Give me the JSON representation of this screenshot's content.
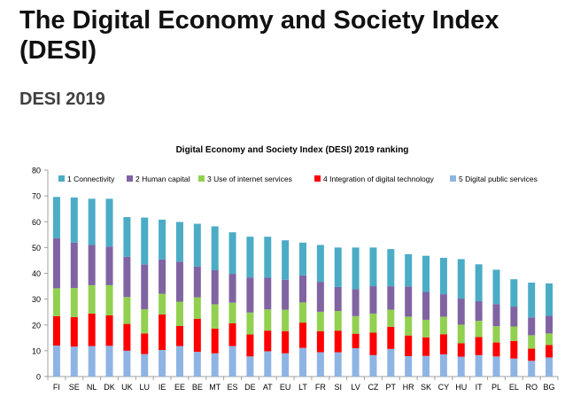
{
  "page": {
    "title": "The Digital Economy and Society Index (DESI)",
    "subtitle": "DESI 2019"
  },
  "chart_data": {
    "type": "bar",
    "stacked": true,
    "title": "Digital Economy and Society Index (DESI) 2019 ranking",
    "xlabel": "",
    "ylabel": "",
    "ylim": [
      0,
      80
    ],
    "yticks": [
      0,
      10,
      20,
      30,
      40,
      50,
      60,
      70,
      80
    ],
    "grid": false,
    "legend_position": "top",
    "categories": [
      "FI",
      "SE",
      "NL",
      "DK",
      "UK",
      "LU",
      "IE",
      "EE",
      "BE",
      "MT",
      "ES",
      "DE",
      "AT",
      "EU",
      "LT",
      "FR",
      "SI",
      "LV",
      "CZ",
      "PT",
      "HR",
      "SK",
      "CY",
      "HU",
      "IT",
      "PL",
      "EL",
      "RO",
      "BG"
    ],
    "series": [
      {
        "name": "5 Digital public services",
        "color": "#8eb4e3",
        "values": [
          12.0,
          11.6,
          11.8,
          11.9,
          10.0,
          8.7,
          10.3,
          11.8,
          9.6,
          9.0,
          11.8,
          7.8,
          9.8,
          9.0,
          11.1,
          9.4,
          9.4,
          11.0,
          8.3,
          10.7,
          7.9,
          8.0,
          8.6,
          7.7,
          8.3,
          7.8,
          7.0,
          6.1,
          7.4
        ]
      },
      {
        "name": "4 Integration of digital technology",
        "color": "#ff0000",
        "values": [
          11.4,
          11.4,
          12.6,
          11.8,
          10.4,
          8.0,
          13.8,
          7.8,
          12.8,
          9.6,
          8.8,
          8.5,
          8.0,
          8.6,
          9.8,
          8.2,
          8.4,
          5.6,
          8.7,
          8.6,
          8.0,
          7.2,
          7.8,
          5.2,
          7.0,
          5.4,
          6.8,
          4.7,
          4.8
        ]
      },
      {
        "name": "3 Use of internet services",
        "color": "#92d050",
        "values": [
          10.8,
          11.3,
          11.0,
          11.7,
          10.4,
          9.4,
          8.0,
          9.4,
          8.3,
          9.4,
          8.0,
          8.5,
          8.2,
          8.3,
          7.8,
          7.5,
          7.6,
          6.8,
          7.4,
          6.6,
          7.3,
          6.8,
          6.8,
          7.2,
          6.3,
          6.3,
          5.6,
          5.2,
          4.5
        ]
      },
      {
        "name": "2 Human capital",
        "color": "#8064a2",
        "values": [
          19.4,
          17.6,
          15.6,
          15.0,
          15.6,
          17.3,
          13.3,
          15.5,
          11.9,
          13.2,
          11.2,
          13.6,
          12.3,
          11.6,
          10.5,
          11.6,
          9.3,
          10.4,
          10.6,
          9.1,
          11.7,
          10.8,
          8.7,
          10.1,
          7.6,
          8.6,
          7.7,
          6.9,
          6.8
        ]
      },
      {
        "name": "1 Connectivity",
        "color": "#4bacc6",
        "values": [
          16.0,
          17.5,
          17.9,
          18.5,
          15.4,
          18.2,
          15.4,
          15.4,
          16.6,
          17.0,
          16.1,
          15.8,
          15.9,
          15.3,
          12.7,
          14.3,
          15.3,
          16.2,
          15.0,
          14.4,
          12.5,
          14.0,
          14.1,
          15.3,
          14.3,
          13.3,
          10.6,
          13.5,
          12.6
        ]
      }
    ]
  }
}
